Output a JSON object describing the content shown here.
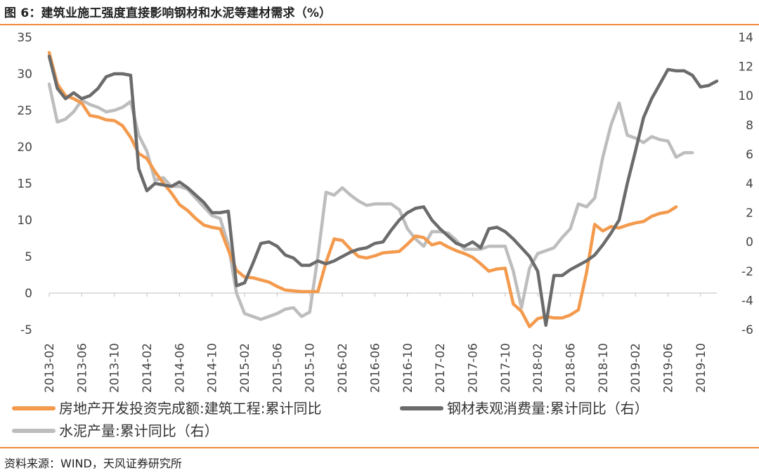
{
  "header": {
    "title": "图 6：建筑业施工强度直接影响钢材和水泥等建材需求（%）"
  },
  "footer": {
    "source": "资料来源：WIND，天风证券研究所"
  },
  "colors": {
    "accent": "#f08a3a",
    "series_orange": "#f39a4d",
    "series_dark": "#6b6b6b",
    "series_light": "#bdbdbd"
  },
  "chart_data": {
    "type": "line",
    "x_tick_labels": [
      "2013-02",
      "2013-06",
      "2013-10",
      "2014-02",
      "2014-06",
      "2014-10",
      "2015-02",
      "2015-06",
      "2015-10",
      "2016-02",
      "2016-06",
      "2016-10",
      "2017-02",
      "2017-06",
      "2017-10",
      "2018-02",
      "2018-06",
      "2018-10",
      "2019-02",
      "2019-06",
      "2019-10"
    ],
    "y_left": {
      "ticks": [
        -5,
        0,
        5,
        10,
        15,
        20,
        25,
        30,
        35
      ],
      "lim": [
        -5,
        35
      ]
    },
    "y_right": {
      "ticks": [
        -6,
        -4,
        -2,
        0,
        2,
        4,
        6,
        8,
        10,
        12,
        14
      ],
      "lim": [
        -6,
        14
      ]
    },
    "legend": [
      "房地产开发投资完成额:建筑工程:累计同比",
      "钢材表观消费量:累计同比（右）",
      "水泥产量:累计同比（右）"
    ],
    "legend_position": "bottom",
    "series": [
      {
        "name": "房地产开发投资完成额:建筑工程:累计同比",
        "axis": "left",
        "x_start": "2013-02",
        "values": [
          32.9,
          28.6,
          27.0,
          26.6,
          26.0,
          24.3,
          24.1,
          23.7,
          23.6,
          22.9,
          21.3,
          19.1,
          18.4,
          16.6,
          15.1,
          13.7,
          12.1,
          11.3,
          10.2,
          9.3,
          9.0,
          8.8,
          5.9,
          3.1,
          2.2,
          2.1,
          1.8,
          1.5,
          0.9,
          0.4,
          0.3,
          0.2,
          0.2,
          0.2,
          4.2,
          7.4,
          7.2,
          6.0,
          5.0,
          4.8,
          5.1,
          5.5,
          5.6,
          5.7,
          6.7,
          7.8,
          7.6,
          6.6,
          6.9,
          6.3,
          5.8,
          5.4,
          4.9,
          4.0,
          3.0,
          3.3,
          3.4,
          -1.5,
          -2.5,
          -4.6,
          -3.5,
          -3.2,
          -3.4,
          -3.4,
          -3.0,
          -2.3,
          2.8,
          9.4,
          8.5,
          9.1,
          8.9,
          9.3,
          9.6,
          9.8,
          10.5,
          10.9,
          11.1,
          11.8
        ]
      },
      {
        "name": "钢材表观消费量:累计同比（右）",
        "axis": "right",
        "x_start": "2013-02",
        "values": [
          12.7,
          10.5,
          9.8,
          10.2,
          9.8,
          10.0,
          10.5,
          11.3,
          11.5,
          11.5,
          11.4,
          5.0,
          3.5,
          4.0,
          3.9,
          3.8,
          4.1,
          3.7,
          3.2,
          2.7,
          2.0,
          2.0,
          2.1,
          -3.0,
          -2.8,
          -1.5,
          -0.1,
          0.0,
          -0.3,
          -0.9,
          -1.1,
          -1.6,
          -1.6,
          -1.3,
          -1.5,
          -1.3,
          -1.0,
          -0.7,
          -0.5,
          -0.4,
          -0.1,
          0.0,
          0.8,
          1.5,
          2.0,
          2.3,
          2.4,
          1.5,
          0.9,
          0.4,
          -0.1,
          -0.3,
          0.0,
          -0.4,
          0.9,
          1.0,
          0.7,
          0.2,
          -0.4,
          -1.0,
          -2.0,
          -5.7,
          -2.3,
          -2.3,
          -1.9,
          -1.6,
          -1.3,
          -0.9,
          -0.2,
          0.6,
          1.5,
          4.0,
          6.2,
          8.5,
          9.8,
          10.8,
          11.8,
          11.7,
          11.7,
          11.4,
          10.6,
          10.7,
          11.0
        ]
      },
      {
        "name": "水泥产量:累计同比（右）",
        "axis": "right",
        "x_start": "2013-02",
        "values": [
          10.8,
          8.2,
          8.4,
          8.9,
          9.7,
          9.4,
          9.2,
          8.9,
          9.0,
          9.2,
          9.6,
          7.3,
          6.2,
          4.2,
          4.4,
          3.8,
          3.8,
          3.6,
          3.0,
          2.4,
          1.8,
          1.6,
          -0.2,
          -3.5,
          -4.9,
          -5.1,
          -5.3,
          -5.1,
          -4.9,
          -4.6,
          -4.5,
          -5.1,
          -4.8,
          -1.0,
          3.4,
          3.2,
          3.7,
          3.2,
          2.8,
          2.5,
          2.6,
          2.6,
          2.6,
          2.2,
          0.9,
          0.2,
          -0.3,
          0.7,
          0.7,
          0.6,
          0.1,
          -0.5,
          -0.5,
          -0.5,
          -0.3,
          -0.3,
          -0.3,
          -2.0,
          -4.5,
          -1.8,
          -0.8,
          -0.6,
          -0.4,
          0.3,
          0.9,
          2.6,
          2.4,
          3.0,
          5.8,
          8.0,
          9.5,
          7.3,
          7.1,
          6.8,
          7.2,
          7.0,
          6.9,
          5.8,
          6.1,
          6.1
        ]
      }
    ]
  }
}
